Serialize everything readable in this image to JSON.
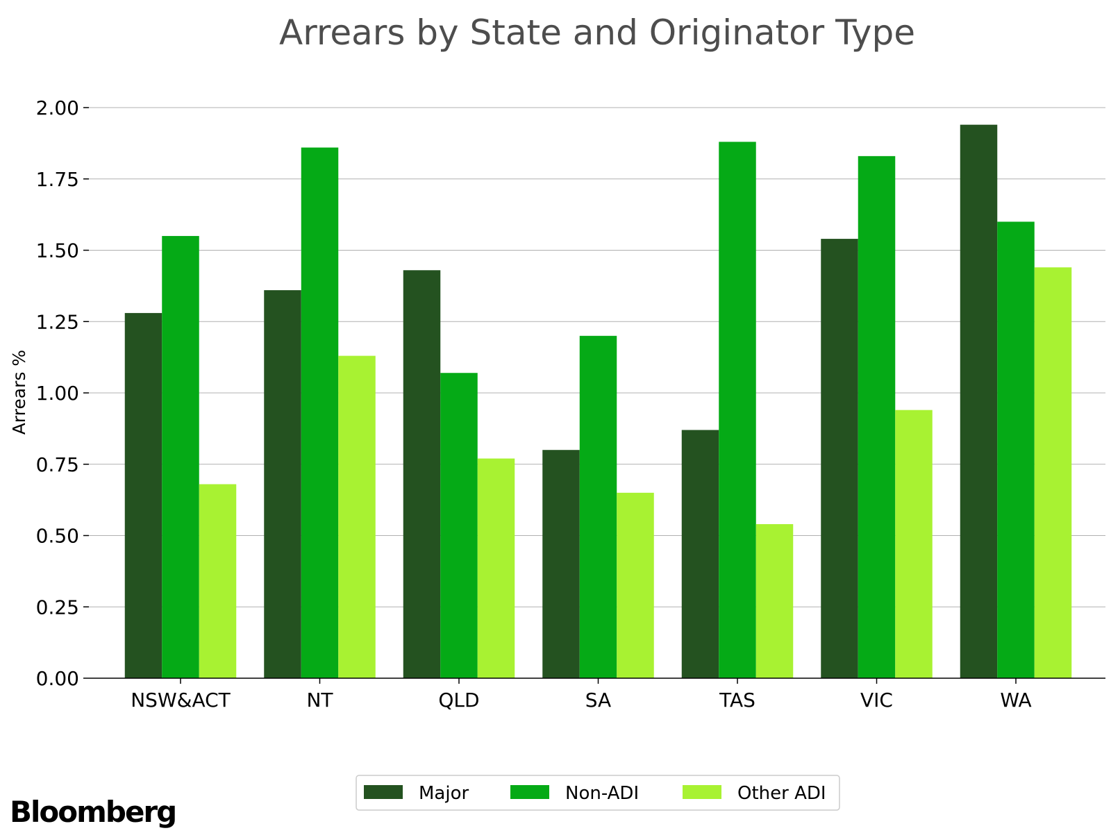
{
  "chart_data": {
    "type": "bar",
    "title": "Arrears by State and Originator Type",
    "ylabel": "Arrears %",
    "xlabel": "",
    "categories": [
      "NSW&ACT",
      "NT",
      "QLD",
      "SA",
      "TAS",
      "VIC",
      "WA"
    ],
    "series": [
      {
        "name": "Major",
        "color": "#245220",
        "values": [
          1.28,
          1.36,
          1.43,
          0.8,
          0.87,
          1.54,
          1.94
        ]
      },
      {
        "name": "Non-ADI",
        "color": "#05aa16",
        "values": [
          1.55,
          1.86,
          1.07,
          1.2,
          1.88,
          1.83,
          1.6
        ]
      },
      {
        "name": "Other ADI",
        "color": "#a8f232",
        "values": [
          0.68,
          1.13,
          0.77,
          0.65,
          0.54,
          0.94,
          1.44
        ]
      }
    ],
    "ylim": [
      0,
      2.0
    ],
    "yticks": [
      "0.00",
      "0.25",
      "0.50",
      "0.75",
      "1.00",
      "1.25",
      "1.50",
      "1.75",
      "2.00"
    ],
    "grid": true,
    "legend_position": "bottom-center"
  },
  "brand": {
    "logo_text": "Bloomberg"
  }
}
